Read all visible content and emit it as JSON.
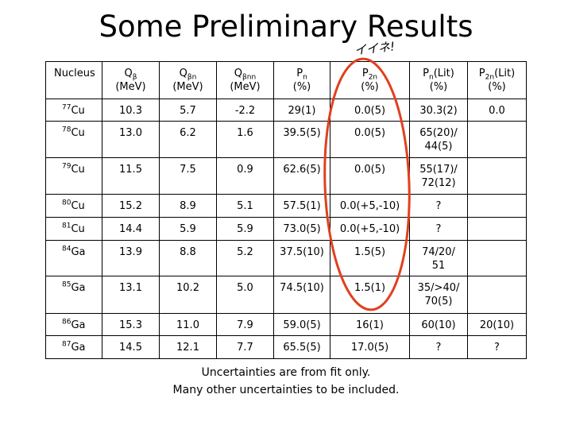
{
  "header": {
    "title": "Some Preliminary Results",
    "annotation": "イイネ!"
  },
  "table": {
    "columns": [
      {
        "text": "Nucleus"
      },
      {
        "base": "Q",
        "sub": "β",
        "unit": "(MeV)"
      },
      {
        "base": "Q",
        "sub": "βn",
        "unit": "(MeV)"
      },
      {
        "base": "Q",
        "sub": "βnn",
        "unit": "(MeV)"
      },
      {
        "base": "P",
        "sub": "n",
        "unit": "(%)"
      },
      {
        "base": "P",
        "sub": "2n",
        "unit": "(%)"
      },
      {
        "base": "P",
        "sub": "n",
        "suffix": "(Lit)",
        "unit": "(%)"
      },
      {
        "base": "P",
        "sub": "2n",
        "suffix": "(Lit)",
        "unit": "(%)"
      }
    ],
    "rows": [
      {
        "mass": "77",
        "element": "Cu",
        "cells": [
          "10.3",
          "5.7",
          "-2.2",
          "29(1)",
          "0.0(5)",
          "30.3(2)",
          "0.0"
        ]
      },
      {
        "mass": "78",
        "element": "Cu",
        "cells": [
          "13.0",
          "6.2",
          "1.6",
          "39.5(5)",
          "0.0(5)",
          [
            "65(20)/",
            "44(5)"
          ],
          null
        ]
      },
      {
        "mass": "79",
        "element": "Cu",
        "cells": [
          "11.5",
          "7.5",
          "0.9",
          "62.6(5)",
          "0.0(5)",
          [
            "55(17)/",
            "72(12)"
          ],
          null
        ]
      },
      {
        "mass": "80",
        "element": "Cu",
        "cells": [
          "15.2",
          "8.9",
          "5.1",
          "57.5(1)",
          "0.0(+5,-10)",
          "?",
          null
        ]
      },
      {
        "mass": "81",
        "element": "Cu",
        "cells": [
          "14.4",
          "5.9",
          "5.9",
          "73.0(5)",
          "0.0(+5,-10)",
          "?",
          null
        ]
      },
      {
        "mass": "84",
        "element": "Ga",
        "cells": [
          "13.9",
          "8.8",
          "5.2",
          "37.5(10)",
          "1.5(5)",
          [
            "74/20/",
            "51"
          ],
          null
        ]
      },
      {
        "mass": "85",
        "element": "Ga",
        "cells": [
          "13.1",
          "10.2",
          "5.0",
          "74.5(10)",
          "1.5(1)",
          [
            "35/>40/",
            "70(5)"
          ],
          null
        ]
      },
      {
        "mass": "86",
        "element": "Ga",
        "cells": [
          "15.3",
          "11.0",
          "7.9",
          "59.0(5)",
          "16(1)",
          "60(10)",
          "20(10)"
        ]
      },
      {
        "mass": "87",
        "element": "Ga",
        "cells": [
          "14.5",
          "12.1",
          "7.7",
          "65.5(5)",
          "17.0(5)",
          "?",
          "?"
        ]
      }
    ]
  },
  "notes": [
    "Uncertainties are from fit only.",
    "Many other uncertainties to be included."
  ]
}
